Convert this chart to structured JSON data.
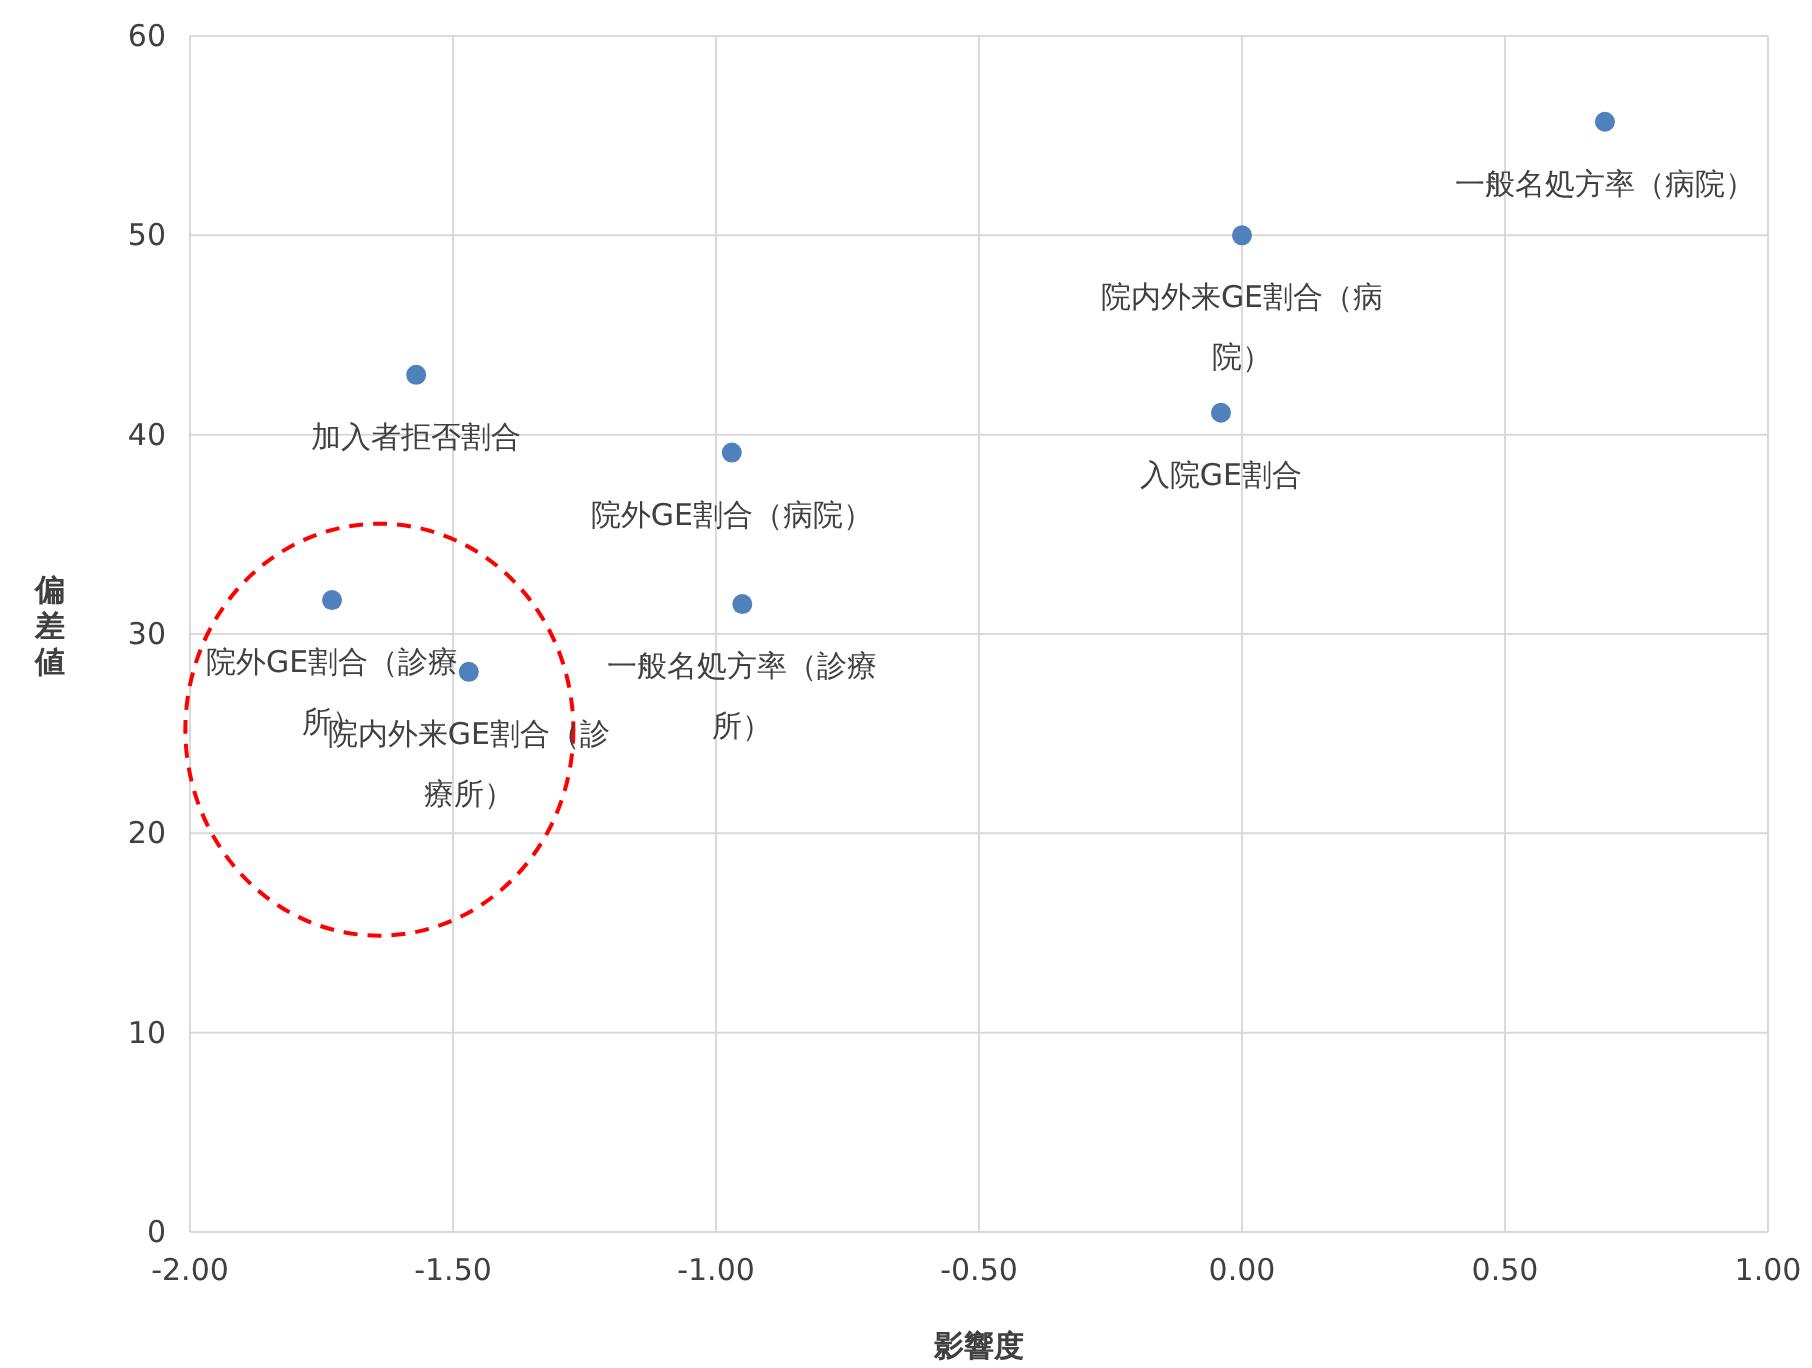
{
  "chart_data": {
    "type": "scatter",
    "xlabel": "影響度",
    "ylabel": "偏差値",
    "x": [
      0.69,
      0.0,
      -0.04,
      -1.57,
      -0.97,
      -0.95,
      -1.73,
      -1.47
    ],
    "values": [
      55.7,
      50.0,
      41.1,
      43.0,
      39.1,
      31.5,
      31.7,
      28.1
    ],
    "color": "#4f81bd",
    "marker": "circle",
    "grid": true,
    "xlim": [
      -2,
      1
    ],
    "xticks": [
      {
        "value": -2,
        "label": "-2.00"
      },
      {
        "value": -1.5,
        "label": "-1.50"
      },
      {
        "value": -1,
        "label": "-1.00"
      },
      {
        "value": -0.5,
        "label": "-0.50"
      },
      {
        "value": 0,
        "label": "0.00"
      },
      {
        "value": 0.5,
        "label": "0.50"
      },
      {
        "value": 1,
        "label": "1.00"
      }
    ],
    "ylim": [
      0,
      60
    ],
    "yticks": [
      0,
      10,
      20,
      30,
      40,
      50,
      60
    ],
    "annotations": [
      {
        "text": "一般名処方率（病院）",
        "x": 0.69,
        "y": 55.7
      },
      {
        "text": "院内外来GE割合（病院）",
        "x": 0.0,
        "y": 50.0
      },
      {
        "text": "入院GE割合",
        "x": -0.04,
        "y": 41.1
      },
      {
        "text": "加入者拒否割合",
        "x": -1.57,
        "y": 43.0
      },
      {
        "text": "院外GE割合（病院）",
        "x": -0.97,
        "y": 39.1
      },
      {
        "text": "一般名処方率（診療所）",
        "x": -0.95,
        "y": 31.5
      },
      {
        "text": "院外GE割合（診療所）",
        "x": -1.73,
        "y": 31.7
      },
      {
        "text": "院内外来GE割合（診療所）",
        "x": -1.47,
        "y": 28.1
      }
    ]
  }
}
